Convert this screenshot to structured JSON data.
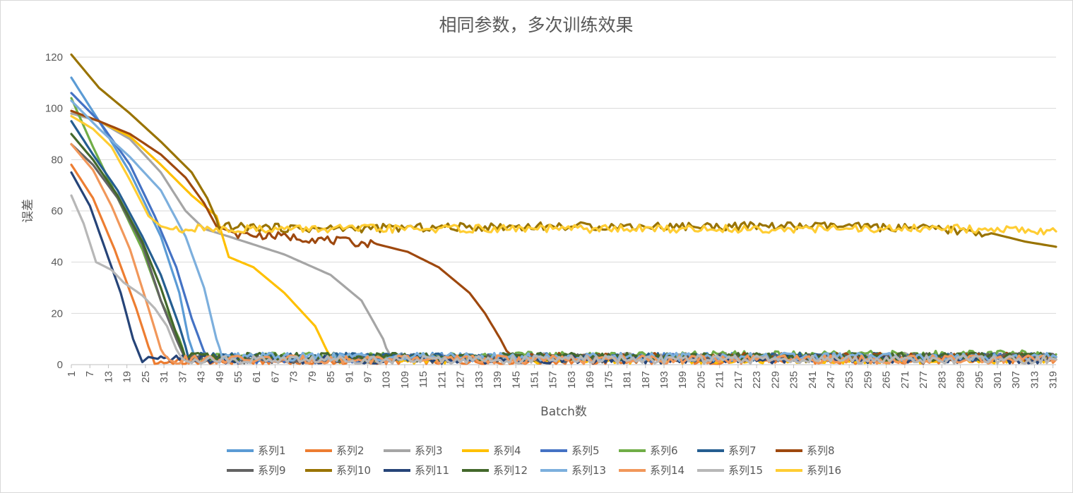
{
  "chart_data": {
    "type": "line",
    "title": "相同参数，多次训练效果",
    "xlabel": "Batch数",
    "ylabel": "误差",
    "ylim": [
      0,
      120
    ],
    "yticks": [
      0,
      20,
      40,
      60,
      80,
      100,
      120
    ],
    "xlim": [
      1,
      320
    ],
    "xtick_step": 6,
    "grid": "horizontal",
    "legend_position": "bottom",
    "series": [
      {
        "name": "系列1",
        "color": "#5b9bd5",
        "points": [
          [
            1,
            112
          ],
          [
            10,
            95
          ],
          [
            20,
            75
          ],
          [
            30,
            50
          ],
          [
            36,
            28
          ],
          [
            39,
            10
          ],
          [
            41,
            3
          ],
          [
            320,
            3
          ]
        ]
      },
      {
        "name": "系列2",
        "color": "#ed7d31",
        "points": [
          [
            1,
            78
          ],
          [
            8,
            65
          ],
          [
            15,
            45
          ],
          [
            22,
            22
          ],
          [
            26,
            7
          ],
          [
            28,
            1
          ],
          [
            320,
            2
          ]
        ]
      },
      {
        "name": "系列3",
        "color": "#a5a5a5",
        "points": [
          [
            1,
            98
          ],
          [
            10,
            95
          ],
          [
            20,
            88
          ],
          [
            30,
            75
          ],
          [
            38,
            60
          ],
          [
            44,
            53
          ],
          [
            52,
            50
          ],
          [
            70,
            43
          ],
          [
            85,
            35
          ],
          [
            95,
            25
          ],
          [
            102,
            10
          ],
          [
            104,
            3
          ],
          [
            320,
            3
          ]
        ]
      },
      {
        "name": "系列4",
        "color": "#ffc000",
        "points": [
          [
            1,
            99
          ],
          [
            10,
            95
          ],
          [
            20,
            89
          ],
          [
            30,
            78
          ],
          [
            40,
            66
          ],
          [
            48,
            58
          ],
          [
            52,
            42
          ],
          [
            60,
            38
          ],
          [
            70,
            28
          ],
          [
            80,
            15
          ],
          [
            84,
            5
          ],
          [
            85,
            2
          ],
          [
            320,
            2
          ]
        ]
      },
      {
        "name": "系列5",
        "color": "#4472c4",
        "points": [
          [
            1,
            106
          ],
          [
            10,
            95
          ],
          [
            20,
            78
          ],
          [
            28,
            58
          ],
          [
            35,
            38
          ],
          [
            40,
            18
          ],
          [
            44,
            5
          ],
          [
            46,
            2
          ],
          [
            320,
            3
          ]
        ]
      },
      {
        "name": "系列6",
        "color": "#70ad47",
        "points": [
          [
            1,
            104
          ],
          [
            8,
            85
          ],
          [
            16,
            65
          ],
          [
            24,
            45
          ],
          [
            30,
            25
          ],
          [
            36,
            10
          ],
          [
            38,
            3
          ],
          [
            320,
            4
          ]
        ]
      },
      {
        "name": "系列7",
        "color": "#255e91",
        "points": [
          [
            1,
            95
          ],
          [
            8,
            82
          ],
          [
            16,
            68
          ],
          [
            24,
            50
          ],
          [
            30,
            35
          ],
          [
            36,
            15
          ],
          [
            39,
            3
          ],
          [
            320,
            3
          ]
        ]
      },
      {
        "name": "系列8",
        "color": "#9e480e",
        "points": [
          [
            1,
            99
          ],
          [
            10,
            95
          ],
          [
            20,
            90
          ],
          [
            30,
            82
          ],
          [
            38,
            73
          ],
          [
            44,
            63
          ],
          [
            48,
            54
          ],
          [
            55,
            51
          ],
          [
            70,
            50
          ],
          [
            90,
            48
          ],
          [
            100,
            47
          ],
          [
            110,
            44
          ],
          [
            120,
            38
          ],
          [
            130,
            28
          ],
          [
            135,
            20
          ],
          [
            140,
            10
          ],
          [
            143,
            3
          ],
          [
            320,
            3
          ]
        ]
      },
      {
        "name": "系列9",
        "color": "#636363",
        "points": [
          [
            1,
            86
          ],
          [
            8,
            78
          ],
          [
            16,
            65
          ],
          [
            24,
            47
          ],
          [
            30,
            25
          ],
          [
            35,
            10
          ],
          [
            38,
            2
          ],
          [
            320,
            3
          ]
        ]
      },
      {
        "name": "系列10",
        "color": "#997300",
        "points": [
          [
            1,
            121
          ],
          [
            10,
            108
          ],
          [
            20,
            98
          ],
          [
            30,
            87
          ],
          [
            40,
            75
          ],
          [
            45,
            65
          ],
          [
            49,
            54
          ],
          [
            80,
            53
          ],
          [
            150,
            54
          ],
          [
            200,
            54
          ],
          [
            250,
            54
          ],
          [
            280,
            53
          ],
          [
            300,
            51
          ],
          [
            310,
            48
          ],
          [
            320,
            46
          ]
        ]
      },
      {
        "name": "系列11",
        "color": "#264478",
        "points": [
          [
            1,
            75
          ],
          [
            7,
            62
          ],
          [
            12,
            45
          ],
          [
            17,
            28
          ],
          [
            21,
            10
          ],
          [
            24,
            1
          ],
          [
            26,
            3
          ],
          [
            30,
            2
          ],
          [
            320,
            2
          ]
        ]
      },
      {
        "name": "系列12",
        "color": "#43682b",
        "points": [
          [
            1,
            90
          ],
          [
            8,
            80
          ],
          [
            16,
            66
          ],
          [
            24,
            48
          ],
          [
            30,
            30
          ],
          [
            35,
            12
          ],
          [
            38,
            3
          ],
          [
            320,
            3
          ]
        ]
      },
      {
        "name": "系列13",
        "color": "#7cafdd",
        "points": [
          [
            1,
            103
          ],
          [
            10,
            92
          ],
          [
            20,
            81
          ],
          [
            30,
            68
          ],
          [
            38,
            50
          ],
          [
            44,
            30
          ],
          [
            48,
            10
          ],
          [
            50,
            3
          ],
          [
            320,
            3
          ]
        ]
      },
      {
        "name": "系列14",
        "color": "#f1975a",
        "points": [
          [
            1,
            86
          ],
          [
            8,
            76
          ],
          [
            14,
            62
          ],
          [
            20,
            45
          ],
          [
            26,
            22
          ],
          [
            30,
            6
          ],
          [
            32,
            2
          ],
          [
            320,
            2
          ]
        ]
      },
      {
        "name": "系列15",
        "color": "#b7b7b7",
        "points": [
          [
            1,
            66
          ],
          [
            5,
            55
          ],
          [
            9,
            40
          ],
          [
            14,
            37
          ],
          [
            18,
            32
          ],
          [
            24,
            27
          ],
          [
            28,
            22
          ],
          [
            32,
            15
          ],
          [
            35,
            6
          ],
          [
            37,
            2
          ],
          [
            320,
            2
          ]
        ]
      },
      {
        "name": "系列16",
        "color": "#ffcd33",
        "points": [
          [
            1,
            97
          ],
          [
            8,
            92
          ],
          [
            14,
            85
          ],
          [
            20,
            72
          ],
          [
            26,
            58
          ],
          [
            30,
            54
          ],
          [
            33,
            53
          ],
          [
            50,
            53
          ],
          [
            100,
            53
          ],
          [
            150,
            53
          ],
          [
            200,
            53
          ],
          [
            250,
            53
          ],
          [
            300,
            53
          ],
          [
            320,
            52
          ]
        ]
      }
    ]
  }
}
